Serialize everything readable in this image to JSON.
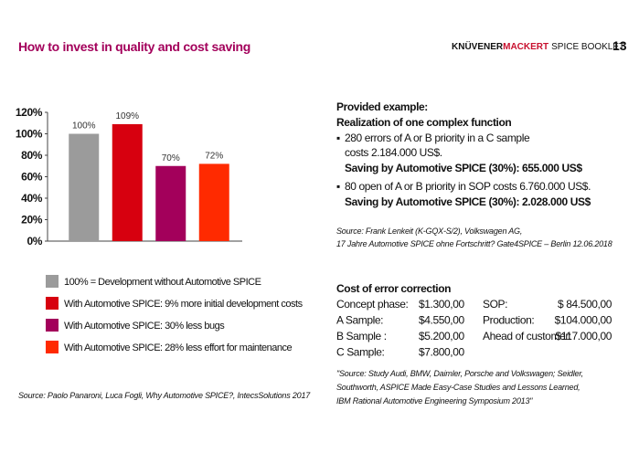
{
  "header": {
    "title": "How to invest in quality and cost saving",
    "brand_first": "KNÜVENER",
    "brand_second": "MACKERT",
    "booklet": "SPICE BOOKLET",
    "page_number": "13"
  },
  "chart_data": {
    "type": "bar",
    "categories": [
      null,
      null,
      null,
      null
    ],
    "values": [
      100,
      109,
      70,
      72
    ],
    "value_labels": [
      "100%",
      "109%",
      "70%",
      "72%"
    ],
    "colors": [
      "#9b9b9b",
      "#d7000f",
      "#a3005b",
      "#ff2a00"
    ],
    "ylim": [
      0,
      120
    ],
    "yticks": [
      {
        "value": 0,
        "label": "0%"
      },
      {
        "value": 20,
        "label": "20%"
      },
      {
        "value": 40,
        "label": "40%"
      },
      {
        "value": 60,
        "label": "60%"
      },
      {
        "value": 80,
        "label": "80%"
      },
      {
        "value": 100,
        "label": "100%"
      },
      {
        "value": 120,
        "label": "120%"
      }
    ],
    "legend": [
      "100% = Development without Automotive SPICE",
      "With Automotive SPICE: 9% more initial development costs",
      "With Automotive SPICE: 30% less bugs",
      "With Automotive SPICE: 28% less effort for maintenance"
    ],
    "source": "Source: Paolo Panaroni, Luca Fogli, Why Automotive SPICE?, IntecsSolutions 2017"
  },
  "example": {
    "heading": "Provided example:",
    "subheading": "Realization of one complex function",
    "items": [
      {
        "lines": [
          "280 errors of A or B priority in a C sample",
          "costs 2.184.000 US$."
        ],
        "saving": "Saving by Automotive SPICE (30%): 655.000 US$"
      },
      {
        "lines": [
          "80 open of A or B priority in SOP costs 6.760.000 US$."
        ],
        "saving": "Saving by Automotive SPICE (30%): 2.028.000 US$"
      }
    ],
    "source_lines": [
      "Source: Frank Lenkeit (K-GQX-S/2), Volkswagen AG,",
      "17 Jahre Automotive SPICE ohne Fortschritt? Gate4SPICE – Berlin 12.06.2018"
    ]
  },
  "cost": {
    "title": "Cost of error correction",
    "rows": [
      [
        "Concept phase:",
        "$1.300,00",
        "SOP:",
        "$ 84.500,00"
      ],
      [
        "A Sample:",
        "$4.550,00",
        "Production:",
        "$104.000,00"
      ],
      [
        "B Sample :",
        "$5.200,00",
        "Ahead of customer:",
        "$117.000,00"
      ],
      [
        "C Sample:",
        "$7.800,00"
      ]
    ],
    "source_lines": [
      "\"Source: Study Audi, BMW, Daimler, Porsche and Volkswagen; Seidler,",
      "Southworth, ASPICE Made Easy-Case Studies and Lessons Learned,",
      "IBM Rational Automotive Engineering Symposium 2013\""
    ]
  }
}
